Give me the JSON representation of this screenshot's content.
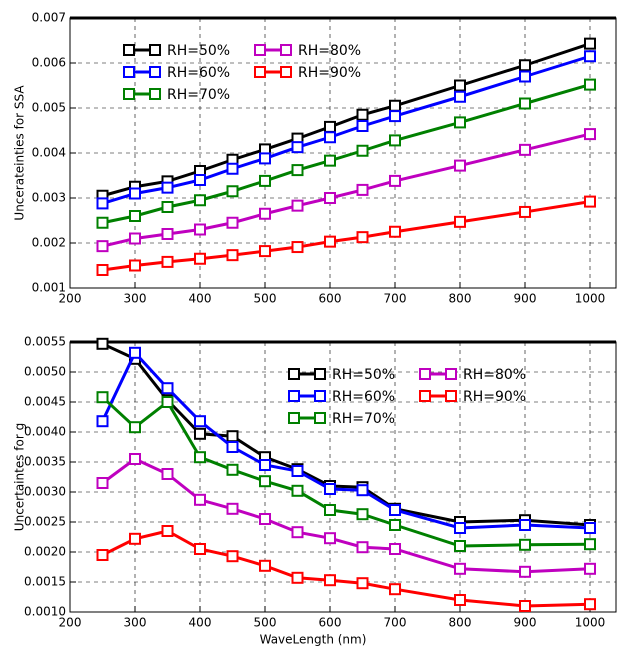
{
  "chart_data": [
    {
      "type": "line",
      "ylabel": "Uncerateinties for SSA",
      "x": [
        250,
        300,
        350,
        400,
        450,
        500,
        550,
        600,
        650,
        700,
        800,
        900,
        1000
      ],
      "xlim": [
        200,
        1040
      ],
      "xticks": [
        200,
        300,
        400,
        500,
        600,
        700,
        800,
        900,
        1000
      ],
      "ylim": [
        0.001,
        0.007
      ],
      "yticks": [
        0.001,
        0.002,
        0.003,
        0.004,
        0.005,
        0.006,
        0.007
      ],
      "grid": true,
      "legend": "upper left",
      "series": [
        {
          "name": "RH=50%",
          "color": "#000000",
          "values": [
            0.00305,
            0.00325,
            0.00337,
            0.0036,
            0.00385,
            0.00408,
            0.00432,
            0.00458,
            0.00485,
            0.00505,
            0.0055,
            0.00595,
            0.00643
          ]
        },
        {
          "name": "RH=60%",
          "color": "#0000ff",
          "values": [
            0.00288,
            0.0031,
            0.00323,
            0.0034,
            0.00365,
            0.00388,
            0.00413,
            0.00435,
            0.0046,
            0.00482,
            0.00525,
            0.0057,
            0.00615
          ]
        },
        {
          "name": "RH=70%",
          "color": "#008000",
          "values": [
            0.00245,
            0.0026,
            0.0028,
            0.00295,
            0.00315,
            0.00338,
            0.00362,
            0.00383,
            0.00405,
            0.00428,
            0.00468,
            0.0051,
            0.00552
          ]
        },
        {
          "name": "RH=80%",
          "color": "#bf00bf",
          "values": [
            0.00193,
            0.0021,
            0.0022,
            0.0023,
            0.00245,
            0.00265,
            0.00283,
            0.003,
            0.00318,
            0.00338,
            0.00372,
            0.00407,
            0.00442
          ]
        },
        {
          "name": "RH=90%",
          "color": "#ff0000",
          "values": [
            0.0014,
            0.0015,
            0.00158,
            0.00165,
            0.00173,
            0.00182,
            0.00191,
            0.00203,
            0.00213,
            0.00225,
            0.00247,
            0.00269,
            0.00292
          ]
        }
      ]
    },
    {
      "type": "line",
      "xlabel": "WaveLength (nm)",
      "ylabel": "Uncertaintes for g",
      "x": [
        250,
        300,
        350,
        400,
        450,
        500,
        550,
        600,
        650,
        700,
        800,
        900,
        1000
      ],
      "xlim": [
        200,
        1040
      ],
      "xticks": [
        200,
        300,
        400,
        500,
        600,
        700,
        800,
        900,
        1000
      ],
      "ylim": [
        0.001,
        0.0055
      ],
      "yticks": [
        {
          "value": 0.001,
          "label": "0.0010"
        },
        {
          "value": 0.0015,
          "label": "0.0015"
        },
        {
          "value": 0.002,
          "label": "0.0020"
        },
        {
          "value": 0.0025,
          "label": "0.0025"
        },
        {
          "value": 0.003,
          "label": "0.0030"
        },
        {
          "value": 0.0035,
          "label": "0.0035"
        },
        {
          "value": 0.004,
          "label": "0.0040"
        },
        {
          "value": 0.0045,
          "label": "0.0045"
        },
        {
          "value": 0.005,
          "label": "0.0050"
        },
        {
          "value": 0.0055,
          "label": "0.0055"
        }
      ],
      "grid": true,
      "legend": "upper center",
      "series": [
        {
          "name": "RH=50%",
          "color": "#000000",
          "values": [
            0.00547,
            0.00522,
            0.00453,
            0.00397,
            0.00393,
            0.00358,
            0.00338,
            0.0031,
            0.00308,
            0.00272,
            0.0025,
            0.00253,
            0.00245
          ]
        },
        {
          "name": "RH=60%",
          "color": "#0000ff",
          "values": [
            0.00418,
            0.00532,
            0.00473,
            0.00418,
            0.00375,
            0.00345,
            0.00335,
            0.00305,
            0.00303,
            0.0027,
            0.0024,
            0.00245,
            0.0024
          ]
        },
        {
          "name": "RH=70%",
          "color": "#008000",
          "values": [
            0.00458,
            0.00408,
            0.0045,
            0.00358,
            0.00337,
            0.00318,
            0.00302,
            0.0027,
            0.00263,
            0.00245,
            0.0021,
            0.00212,
            0.00213
          ]
        },
        {
          "name": "RH=80%",
          "color": "#bf00bf",
          "values": [
            0.00315,
            0.00355,
            0.0033,
            0.00287,
            0.00272,
            0.00255,
            0.00233,
            0.00223,
            0.00208,
            0.00205,
            0.00172,
            0.00167,
            0.00172
          ]
        },
        {
          "name": "RH=90%",
          "color": "#ff0000",
          "values": [
            0.00195,
            0.00222,
            0.00235,
            0.00205,
            0.00193,
            0.00177,
            0.00157,
            0.00153,
            0.00148,
            0.00138,
            0.0012,
            0.0011,
            0.00113
          ]
        }
      ]
    }
  ]
}
